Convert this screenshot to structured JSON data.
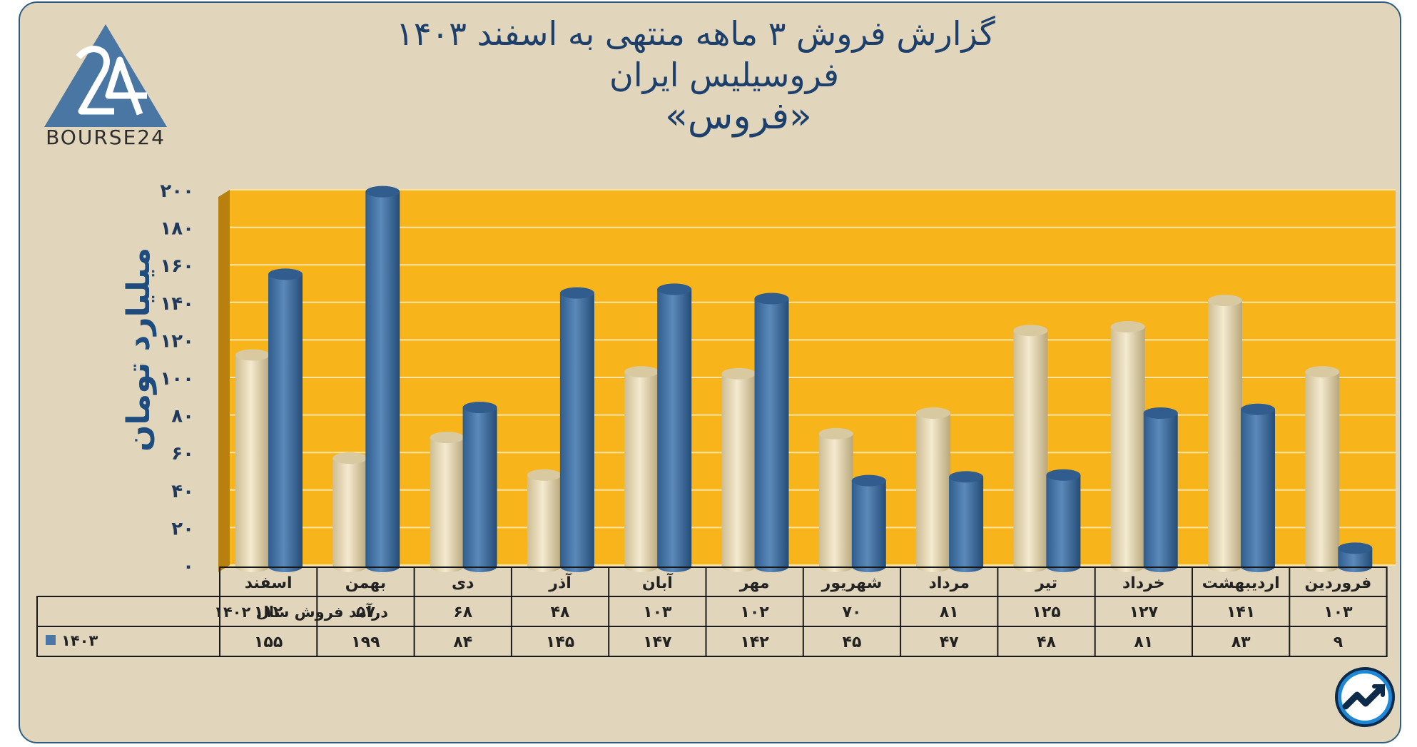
{
  "title": {
    "line1": "گزارش  فروش ۳ ماهه منتهی به اسفند ۱۴۰۳",
    "line2": "فروسیلیس ایران",
    "line3": "«فروس»"
  },
  "logo": {
    "text": "BOURSE24"
  },
  "colors": {
    "plot_bg": "#f8b41b",
    "series_1402": "#e9dcb8",
    "series_1403": "#4a77a6",
    "title": "#1d3f6c",
    "card_bg": "#e1d6bb"
  },
  "chart_data": {
    "type": "bar",
    "ylabel": "میلیارد تومان",
    "ylim": [
      0,
      200
    ],
    "yticks": [
      "۰",
      "۲۰",
      "۴۰",
      "۶۰",
      "۸۰",
      "۱۰۰",
      "۱۲۰",
      "۱۴۰",
      "۱۶۰",
      "۱۸۰",
      "۲۰۰"
    ],
    "categories": [
      "فروردین",
      "اردیبهشت",
      "خرداد",
      "تیر",
      "مرداد",
      "شهریور",
      "مهر",
      "آبان",
      "آذر",
      "دی",
      "بهمن",
      "اسفند"
    ],
    "series": [
      {
        "name": "درآمد فروش سال ۱۴۰۲",
        "values": [
          103,
          141,
          127,
          125,
          81,
          70,
          102,
          103,
          48,
          68,
          57,
          112
        ],
        "labels": [
          "۱۰۳",
          "۱۴۱",
          "۱۲۷",
          "۱۲۵",
          "۸۱",
          "۷۰",
          "۱۰۲",
          "۱۰۳",
          "۴۸",
          "۶۸",
          "۵۷",
          "۱۱۲"
        ]
      },
      {
        "name": "۱۴۰۳",
        "values": [
          9,
          83,
          81,
          48,
          47,
          45,
          142,
          147,
          145,
          84,
          199,
          155
        ],
        "labels": [
          "۹",
          "۸۳",
          "۸۱",
          "۴۸",
          "۴۷",
          "۴۵",
          "۱۴۲",
          "۱۴۷",
          "۱۴۵",
          "۸۴",
          "۱۹۹",
          "۱۵۵"
        ]
      }
    ],
    "grid": true,
    "legend": "data-table-below"
  }
}
